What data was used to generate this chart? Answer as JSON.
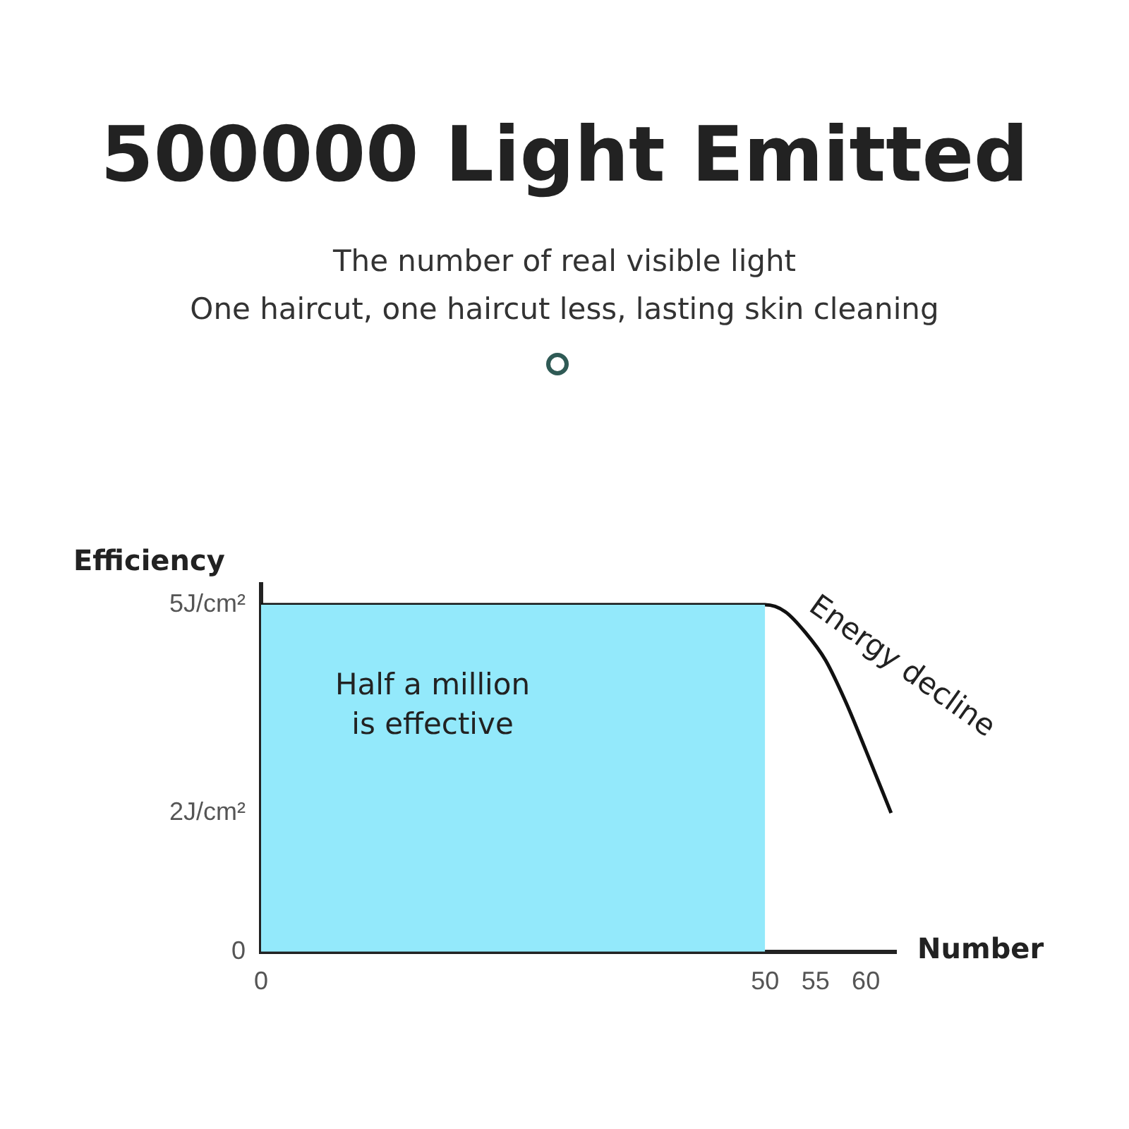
{
  "chart_data": {
    "type": "area",
    "title": "500000 Light Emitted",
    "subtitle": "The number of real visible light\nOne haircut, one haircut less, lasting skin cleaning",
    "xlabel": "Number",
    "ylabel": "Efficiency",
    "series": [
      {
        "color": "#93e9fb",
        "x": [
          0,
          50
        ],
        "values": [
          5,
          5
        ]
      },
      {
        "type": "line",
        "color": "#111111",
        "x": [
          0,
          50,
          52,
          54,
          56,
          58,
          60,
          62.5
        ],
        "values": [
          5,
          5,
          4.9,
          4.6,
          4.2,
          3.6,
          2.9,
          2
        ]
      }
    ],
    "xlim": [
      0,
      63
    ],
    "xticks": [
      0,
      50,
      55,
      60
    ],
    "ylim": [
      0,
      5.3
    ],
    "yticks": [
      0,
      {
        "value": 2,
        "label": "2J/cm²"
      },
      {
        "value": 5,
        "label": "5J/cm²"
      }
    ],
    "annotations": [
      "Half a million\nis effective",
      "Energy decline"
    ],
    "grid": false,
    "legend": false
  }
}
